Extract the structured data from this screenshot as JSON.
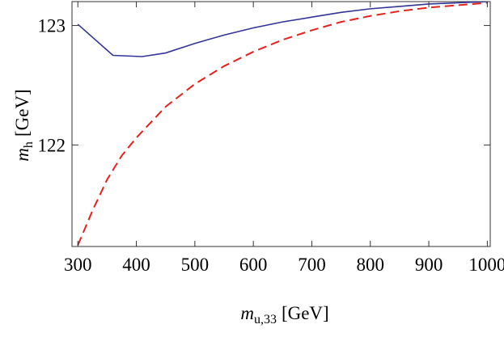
{
  "chart_data": {
    "type": "line",
    "xlabel": {
      "var": "m",
      "sub": "u,33",
      "unit": "[GeV]"
    },
    "ylabel": {
      "var": "m",
      "sub": "h",
      "unit": "[GeV]"
    },
    "xlim": [
      290,
      1005
    ],
    "ylim": [
      121.15,
      123.2
    ],
    "x_ticks": [
      300,
      400,
      500,
      600,
      700,
      800,
      900,
      1000
    ],
    "y_ticks": [
      122,
      123
    ],
    "grid": false,
    "series": [
      {
        "style": "solid",
        "color": "#33339a",
        "points": [
          [
            300,
            123.01
          ],
          [
            360,
            122.75
          ],
          [
            410,
            122.74
          ],
          [
            450,
            122.77
          ],
          [
            500,
            122.85
          ],
          [
            550,
            122.92
          ],
          [
            600,
            122.98
          ],
          [
            650,
            123.03
          ],
          [
            700,
            123.07
          ],
          [
            750,
            123.11
          ],
          [
            800,
            123.14
          ],
          [
            850,
            123.16
          ],
          [
            900,
            123.18
          ],
          [
            950,
            123.19
          ],
          [
            1000,
            123.2
          ]
        ]
      },
      {
        "style": "dashed",
        "color": "#e8201c",
        "points": [
          [
            300,
            121.16
          ],
          [
            325,
            121.45
          ],
          [
            350,
            121.71
          ],
          [
            375,
            121.91
          ],
          [
            400,
            122.06
          ],
          [
            450,
            122.32
          ],
          [
            500,
            122.51
          ],
          [
            550,
            122.66
          ],
          [
            600,
            122.78
          ],
          [
            650,
            122.88
          ],
          [
            700,
            122.96
          ],
          [
            750,
            123.03
          ],
          [
            800,
            123.08
          ],
          [
            850,
            123.12
          ],
          [
            900,
            123.15
          ],
          [
            950,
            123.17
          ],
          [
            1000,
            123.19
          ]
        ]
      }
    ]
  }
}
